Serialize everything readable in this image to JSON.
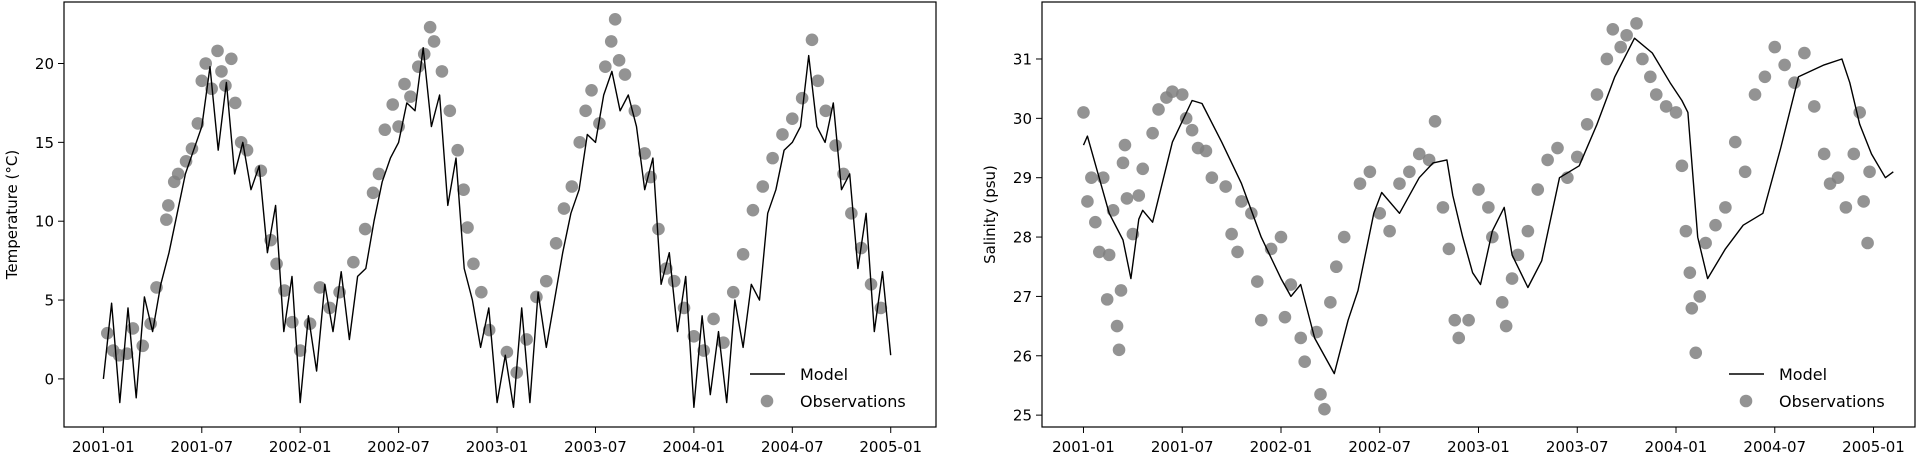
{
  "chart_data": [
    {
      "type": "line+scatter",
      "ylabel": "Temperature (°C)",
      "xlabel": "",
      "xlim": [
        2000.8,
        2005.23
      ],
      "ylim": [
        -3.05,
        23.9
      ],
      "xticks": [
        {
          "v": 2001.0,
          "label": "2001-01"
        },
        {
          "v": 2001.5,
          "label": "2001-07"
        },
        {
          "v": 2002.0,
          "label": "2002-01"
        },
        {
          "v": 2002.5,
          "label": "2002-07"
        },
        {
          "v": 2003.0,
          "label": "2003-01"
        },
        {
          "v": 2003.5,
          "label": "2003-07"
        },
        {
          "v": 2004.0,
          "label": "2004-01"
        },
        {
          "v": 2004.5,
          "label": "2004-07"
        },
        {
          "v": 2005.0,
          "label": "2005-01"
        }
      ],
      "yticks": [
        {
          "v": 0,
          "label": "0"
        },
        {
          "v": 5,
          "label": "5"
        },
        {
          "v": 10,
          "label": "10"
        },
        {
          "v": 15,
          "label": "15"
        },
        {
          "v": 20,
          "label": "20"
        }
      ],
      "legend": {
        "position": "lower-right",
        "model_label": "Model",
        "obs_label": "Observations"
      },
      "grid": false,
      "model": {
        "start": 2001.0,
        "step_years": 0.041667,
        "values": [
          0,
          4.8,
          -1.5,
          4.5,
          -1.2,
          5.2,
          3,
          6,
          8,
          10.5,
          13,
          14.5,
          16,
          19.8,
          14.5,
          18.8,
          13,
          15,
          12,
          13.5,
          8,
          11,
          3,
          6.5,
          -1.5,
          4,
          0.5,
          6,
          3,
          6.8,
          2.5,
          6.5,
          7,
          10,
          12.5,
          14,
          15,
          17.5,
          17,
          21,
          16,
          18,
          11,
          14,
          7,
          5,
          2,
          4.5,
          -1.5,
          1.5,
          -1.8,
          4.5,
          -1.5,
          5.5,
          2,
          5,
          8,
          10.5,
          12,
          15.5,
          15,
          18,
          19.5,
          17,
          18,
          16,
          12,
          14,
          6,
          8,
          3,
          6.5,
          -1.8,
          4,
          -1,
          3,
          -1.5,
          5,
          2,
          6,
          5,
          10.5,
          12,
          14.5,
          15,
          16,
          20.5,
          16,
          15,
          17.5,
          12,
          13,
          7,
          10.5,
          3,
          6.8,
          1.5
        ]
      },
      "observations": [
        [
          2001.02,
          2.9
        ],
        [
          2001.05,
          1.8
        ],
        [
          2001.08,
          1.5
        ],
        [
          2001.12,
          1.6
        ],
        [
          2001.15,
          3.2
        ],
        [
          2001.2,
          2.1
        ],
        [
          2001.24,
          3.5
        ],
        [
          2001.27,
          5.8
        ],
        [
          2001.32,
          10.1
        ],
        [
          2001.33,
          11
        ],
        [
          2001.36,
          12.5
        ],
        [
          2001.38,
          13
        ],
        [
          2001.42,
          13.8
        ],
        [
          2001.45,
          14.6
        ],
        [
          2001.48,
          16.2
        ],
        [
          2001.5,
          18.9
        ],
        [
          2001.52,
          20
        ],
        [
          2001.55,
          18.4
        ],
        [
          2001.58,
          20.8
        ],
        [
          2001.6,
          19.5
        ],
        [
          2001.62,
          18.6
        ],
        [
          2001.65,
          20.3
        ],
        [
          2001.67,
          17.5
        ],
        [
          2001.7,
          15
        ],
        [
          2001.73,
          14.5
        ],
        [
          2001.8,
          13.2
        ],
        [
          2001.85,
          8.8
        ],
        [
          2001.88,
          7.3
        ],
        [
          2001.92,
          5.6
        ],
        [
          2001.96,
          3.6
        ],
        [
          2002.0,
          1.8
        ],
        [
          2002.05,
          3.5
        ],
        [
          2002.1,
          5.8
        ],
        [
          2002.15,
          4.5
        ],
        [
          2002.2,
          5.5
        ],
        [
          2002.27,
          7.4
        ],
        [
          2002.33,
          9.5
        ],
        [
          2002.37,
          11.8
        ],
        [
          2002.4,
          13
        ],
        [
          2002.43,
          15.8
        ],
        [
          2002.47,
          17.4
        ],
        [
          2002.5,
          16
        ],
        [
          2002.53,
          18.7
        ],
        [
          2002.56,
          17.9
        ],
        [
          2002.6,
          19.8
        ],
        [
          2002.63,
          20.6
        ],
        [
          2002.66,
          22.3
        ],
        [
          2002.68,
          21.4
        ],
        [
          2002.72,
          19.5
        ],
        [
          2002.76,
          17
        ],
        [
          2002.8,
          14.5
        ],
        [
          2002.83,
          12
        ],
        [
          2002.85,
          9.6
        ],
        [
          2002.88,
          7.3
        ],
        [
          2002.92,
          5.5
        ],
        [
          2002.96,
          3.1
        ],
        [
          2003.05,
          1.7
        ],
        [
          2003.1,
          0.4
        ],
        [
          2003.15,
          2.5
        ],
        [
          2003.2,
          5.2
        ],
        [
          2003.25,
          6.2
        ],
        [
          2003.3,
          8.6
        ],
        [
          2003.34,
          10.8
        ],
        [
          2003.38,
          12.2
        ],
        [
          2003.42,
          15
        ],
        [
          2003.45,
          17
        ],
        [
          2003.48,
          18.3
        ],
        [
          2003.52,
          16.2
        ],
        [
          2003.55,
          19.8
        ],
        [
          2003.58,
          21.4
        ],
        [
          2003.6,
          22.8
        ],
        [
          2003.62,
          20.2
        ],
        [
          2003.65,
          19.3
        ],
        [
          2003.7,
          17
        ],
        [
          2003.75,
          14.3
        ],
        [
          2003.78,
          12.8
        ],
        [
          2003.82,
          9.5
        ],
        [
          2003.86,
          7
        ],
        [
          2003.9,
          6.2
        ],
        [
          2003.95,
          4.5
        ],
        [
          2004.0,
          2.7
        ],
        [
          2004.05,
          1.8
        ],
        [
          2004.1,
          3.8
        ],
        [
          2004.15,
          2.3
        ],
        [
          2004.2,
          5.5
        ],
        [
          2004.25,
          7.9
        ],
        [
          2004.3,
          10.7
        ],
        [
          2004.35,
          12.2
        ],
        [
          2004.4,
          14
        ],
        [
          2004.45,
          15.5
        ],
        [
          2004.5,
          16.5
        ],
        [
          2004.55,
          17.8
        ],
        [
          2004.6,
          21.5
        ],
        [
          2004.63,
          18.9
        ],
        [
          2004.67,
          17
        ],
        [
          2004.72,
          14.8
        ],
        [
          2004.76,
          13
        ],
        [
          2004.8,
          10.5
        ],
        [
          2004.85,
          8.3
        ],
        [
          2004.9,
          6
        ],
        [
          2004.95,
          4.5
        ]
      ]
    },
    {
      "type": "line+scatter",
      "ylabel": "Salinity (psu)",
      "xlabel": "",
      "xlim": [
        2000.79,
        2005.21
      ],
      "ylim": [
        24.8,
        31.96
      ],
      "xticks": [
        {
          "v": 2001.0,
          "label": "2001-01"
        },
        {
          "v": 2001.5,
          "label": "2001-07"
        },
        {
          "v": 2002.0,
          "label": "2002-01"
        },
        {
          "v": 2002.5,
          "label": "2002-07"
        },
        {
          "v": 2003.0,
          "label": "2003-01"
        },
        {
          "v": 2003.5,
          "label": "2003-07"
        },
        {
          "v": 2004.0,
          "label": "2004-01"
        },
        {
          "v": 2004.5,
          "label": "2004-07"
        },
        {
          "v": 2005.0,
          "label": "2005-01"
        }
      ],
      "yticks": [
        {
          "v": 25,
          "label": "25"
        },
        {
          "v": 26,
          "label": "26"
        },
        {
          "v": 27,
          "label": "27"
        },
        {
          "v": 28,
          "label": "28"
        },
        {
          "v": 29,
          "label": "29"
        },
        {
          "v": 30,
          "label": "30"
        },
        {
          "v": 31,
          "label": "31"
        }
      ],
      "legend": {
        "position": "lower-right",
        "model_label": "Model",
        "obs_label": "Observations"
      },
      "grid": false,
      "model": {
        "points": [
          [
            2001.0,
            29.55
          ],
          [
            2001.02,
            29.7
          ],
          [
            2001.13,
            28.4
          ],
          [
            2001.2,
            27.95
          ],
          [
            2001.24,
            27.3
          ],
          [
            2001.28,
            28.3
          ],
          [
            2001.3,
            28.45
          ],
          [
            2001.35,
            28.25
          ],
          [
            2001.45,
            29.6
          ],
          [
            2001.55,
            30.3
          ],
          [
            2001.6,
            30.25
          ],
          [
            2001.7,
            29.6
          ],
          [
            2001.8,
            28.9
          ],
          [
            2001.9,
            28.0
          ],
          [
            2002.0,
            27.3
          ],
          [
            2002.05,
            27.0
          ],
          [
            2002.1,
            27.2
          ],
          [
            2002.17,
            26.3
          ],
          [
            2002.27,
            25.7
          ],
          [
            2002.34,
            26.6
          ],
          [
            2002.39,
            27.1
          ],
          [
            2002.47,
            28.4
          ],
          [
            2002.51,
            28.75
          ],
          [
            2002.6,
            28.4
          ],
          [
            2002.7,
            29.0
          ],
          [
            2002.77,
            29.25
          ],
          [
            2002.84,
            29.3
          ],
          [
            2002.87,
            28.7
          ],
          [
            2002.92,
            28.0
          ],
          [
            2002.97,
            27.4
          ],
          [
            2003.01,
            27.2
          ],
          [
            2003.07,
            28.1
          ],
          [
            2003.13,
            28.5
          ],
          [
            2003.17,
            27.7
          ],
          [
            2003.25,
            27.15
          ],
          [
            2003.32,
            27.6
          ],
          [
            2003.41,
            29.0
          ],
          [
            2003.51,
            29.2
          ],
          [
            2003.6,
            29.9
          ],
          [
            2003.69,
            30.7
          ],
          [
            2003.79,
            31.35
          ],
          [
            2003.88,
            31.1
          ],
          [
            2003.97,
            30.6
          ],
          [
            2004.03,
            30.3
          ],
          [
            2004.06,
            30.1
          ],
          [
            2004.11,
            28.0
          ],
          [
            2004.16,
            27.3
          ],
          [
            2004.25,
            27.8
          ],
          [
            2004.34,
            28.2
          ],
          [
            2004.44,
            28.4
          ],
          [
            2004.53,
            29.5
          ],
          [
            2004.62,
            30.7
          ],
          [
            2004.75,
            30.9
          ],
          [
            2004.84,
            31.0
          ],
          [
            2004.88,
            30.6
          ],
          [
            2004.93,
            29.9
          ],
          [
            2004.99,
            29.4
          ],
          [
            2005.06,
            29.0
          ],
          [
            2005.1,
            29.1
          ]
        ]
      },
      "observations": [
        [
          2001.0,
          30.1
        ],
        [
          2001.02,
          28.6
        ],
        [
          2001.04,
          29.0
        ],
        [
          2001.06,
          28.25
        ],
        [
          2001.08,
          27.75
        ],
        [
          2001.1,
          29.0
        ],
        [
          2001.12,
          26.95
        ],
        [
          2001.13,
          27.7
        ],
        [
          2001.15,
          28.45
        ],
        [
          2001.17,
          26.5
        ],
        [
          2001.18,
          26.1
        ],
        [
          2001.19,
          27.1
        ],
        [
          2001.2,
          29.25
        ],
        [
          2001.21,
          29.55
        ],
        [
          2001.22,
          28.65
        ],
        [
          2001.25,
          28.05
        ],
        [
          2001.28,
          28.7
        ],
        [
          2001.3,
          29.15
        ],
        [
          2001.35,
          29.75
        ],
        [
          2001.38,
          30.15
        ],
        [
          2001.42,
          30.35
        ],
        [
          2001.45,
          30.45
        ],
        [
          2001.5,
          30.4
        ],
        [
          2001.52,
          30.0
        ],
        [
          2001.55,
          29.8
        ],
        [
          2001.58,
          29.5
        ],
        [
          2001.62,
          29.45
        ],
        [
          2001.65,
          29.0
        ],
        [
          2001.72,
          28.85
        ],
        [
          2001.75,
          28.05
        ],
        [
          2001.78,
          27.75
        ],
        [
          2001.8,
          28.6
        ],
        [
          2001.85,
          28.4
        ],
        [
          2001.88,
          27.25
        ],
        [
          2001.9,
          26.6
        ],
        [
          2001.95,
          27.8
        ],
        [
          2002.0,
          28.0
        ],
        [
          2002.02,
          26.65
        ],
        [
          2002.05,
          27.2
        ],
        [
          2002.1,
          26.3
        ],
        [
          2002.12,
          25.9
        ],
        [
          2002.18,
          26.4
        ],
        [
          2002.2,
          25.35
        ],
        [
          2002.22,
          25.1
        ],
        [
          2002.25,
          26.9
        ],
        [
          2002.28,
          27.5
        ],
        [
          2002.32,
          28.0
        ],
        [
          2002.4,
          28.9
        ],
        [
          2002.45,
          29.1
        ],
        [
          2002.5,
          28.4
        ],
        [
          2002.55,
          28.1
        ],
        [
          2002.6,
          28.9
        ],
        [
          2002.65,
          29.1
        ],
        [
          2002.7,
          29.4
        ],
        [
          2002.75,
          29.3
        ],
        [
          2002.78,
          29.95
        ],
        [
          2002.82,
          28.5
        ],
        [
          2002.85,
          27.8
        ],
        [
          2002.88,
          26.6
        ],
        [
          2002.9,
          26.3
        ],
        [
          2002.95,
          26.6
        ],
        [
          2003.0,
          28.8
        ],
        [
          2003.05,
          28.5
        ],
        [
          2003.07,
          28.0
        ],
        [
          2003.12,
          26.9
        ],
        [
          2003.14,
          26.5
        ],
        [
          2003.17,
          27.3
        ],
        [
          2003.2,
          27.7
        ],
        [
          2003.25,
          28.1
        ],
        [
          2003.3,
          28.8
        ],
        [
          2003.35,
          29.3
        ],
        [
          2003.4,
          29.5
        ],
        [
          2003.45,
          29.0
        ],
        [
          2003.5,
          29.35
        ],
        [
          2003.55,
          29.9
        ],
        [
          2003.6,
          30.4
        ],
        [
          2003.65,
          31.0
        ],
        [
          2003.68,
          31.5
        ],
        [
          2003.72,
          31.2
        ],
        [
          2003.75,
          31.4
        ],
        [
          2003.8,
          31.6
        ],
        [
          2003.83,
          31.0
        ],
        [
          2003.87,
          30.7
        ],
        [
          2003.9,
          30.4
        ],
        [
          2003.95,
          30.2
        ],
        [
          2004.0,
          30.1
        ],
        [
          2004.03,
          29.2
        ],
        [
          2004.05,
          28.1
        ],
        [
          2004.07,
          27.4
        ],
        [
          2004.08,
          26.8
        ],
        [
          2004.1,
          26.05
        ],
        [
          2004.12,
          27.0
        ],
        [
          2004.15,
          27.9
        ],
        [
          2004.2,
          28.2
        ],
        [
          2004.25,
          28.5
        ],
        [
          2004.3,
          29.6
        ],
        [
          2004.35,
          29.1
        ],
        [
          2004.4,
          30.4
        ],
        [
          2004.45,
          30.7
        ],
        [
          2004.5,
          31.2
        ],
        [
          2004.55,
          30.9
        ],
        [
          2004.6,
          30.6
        ],
        [
          2004.65,
          31.1
        ],
        [
          2004.7,
          30.2
        ],
        [
          2004.75,
          29.4
        ],
        [
          2004.78,
          28.9
        ],
        [
          2004.82,
          29.0
        ],
        [
          2004.86,
          28.5
        ],
        [
          2004.9,
          29.4
        ],
        [
          2004.93,
          30.1
        ],
        [
          2004.95,
          28.6
        ],
        [
          2004.97,
          27.9
        ],
        [
          2004.98,
          29.1
        ]
      ]
    }
  ],
  "colors": {
    "model": "#000000",
    "observations": "#808080"
  }
}
